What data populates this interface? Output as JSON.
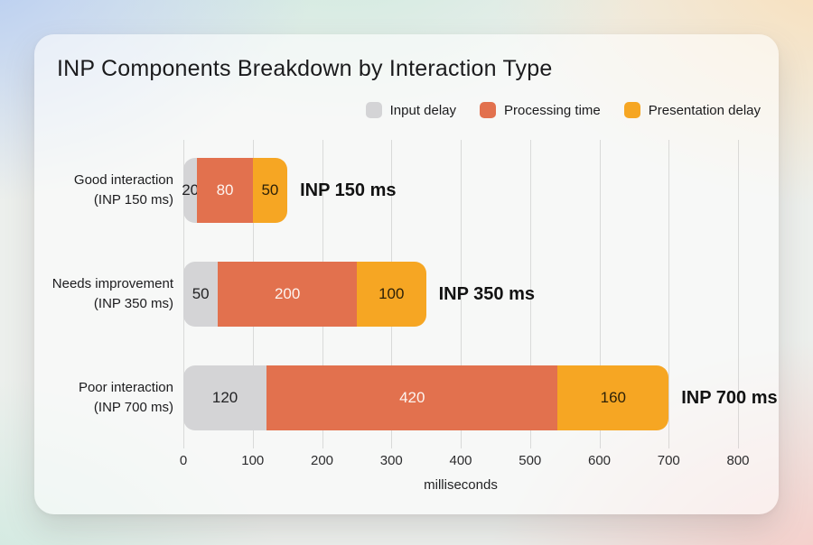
{
  "title": "INP Components Breakdown by Interaction Type",
  "colors": {
    "input_delay": "#d4d4d6",
    "processing_time": "#e2714e",
    "presentation_delay": "#f6a623",
    "card_background": "rgba(255,255,255,0.58)",
    "text_dark": "#1b1b1d"
  },
  "chart_data": {
    "type": "bar",
    "orientation": "horizontal",
    "stacked": true,
    "title": "INP Components Breakdown by Interaction Type",
    "categories": [
      "Good interaction (INP 150 ms)",
      "Needs improvement (INP 350 ms)",
      "Poor interaction (INP 700 ms)"
    ],
    "category_lines": [
      [
        "Good interaction",
        "(INP 150 ms)"
      ],
      [
        "Needs improvement",
        "(INP 350 ms)"
      ],
      [
        "Poor interaction",
        "(INP 700 ms)"
      ]
    ],
    "series": [
      {
        "name": "Input delay",
        "color": "#d4d4d6",
        "text_color": "#222224",
        "values": [
          20,
          50,
          120
        ]
      },
      {
        "name": "Processing time",
        "color": "#e2714e",
        "text_color": "#fdf4ef",
        "values": [
          80,
          200,
          420
        ]
      },
      {
        "name": "Presentation delay",
        "color": "#f6a623",
        "text_color": "#2d2108",
        "values": [
          50,
          100,
          160
        ]
      }
    ],
    "totals": [
      150,
      350,
      700
    ],
    "total_labels": [
      "INP 150 ms",
      "INP 350 ms",
      "INP 700 ms"
    ],
    "xlabel": "milliseconds",
    "xticks": [
      0,
      100,
      200,
      300,
      400,
      500,
      600,
      700,
      800
    ],
    "xlim": [
      0,
      800
    ],
    "grid": true,
    "legend_position": "top-right"
  }
}
